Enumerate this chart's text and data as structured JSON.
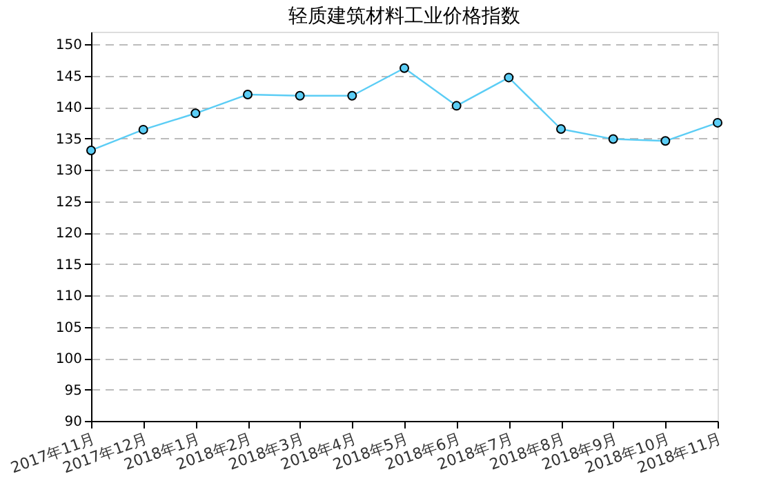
{
  "chart_data": {
    "type": "line",
    "title": "轻质建筑材料工业价格指数",
    "categories": [
      "2017年11月",
      "2017年12月",
      "2018年1月",
      "2018年2月",
      "2018年3月",
      "2018年4月",
      "2018年5月",
      "2018年6月",
      "2018年7月",
      "2018年8月",
      "2018年9月",
      "2018年10月",
      "2018年11月"
    ],
    "series": [
      {
        "color": "#5bcdf5",
        "values": [
          133.1,
          136.4,
          139.0,
          142.0,
          141.8,
          141.8,
          146.2,
          140.2,
          144.7,
          136.5,
          134.9,
          134.6,
          137.5
        ]
      }
    ],
    "ylim": [
      90,
      152
    ],
    "yticks": [
      90,
      95,
      100,
      105,
      110,
      115,
      120,
      125,
      130,
      135,
      140,
      145,
      150
    ],
    "grid": "y",
    "marker": "circle",
    "line_style": "solid",
    "legend": false
  }
}
